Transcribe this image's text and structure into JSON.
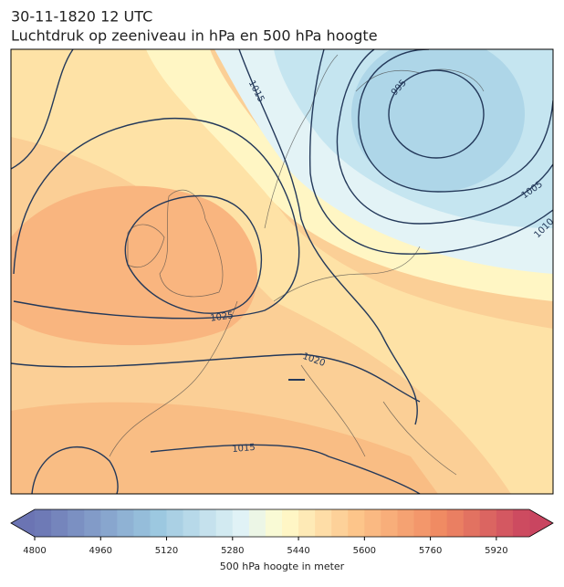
{
  "header": {
    "date": "30-11-1820 12 UTC",
    "title": "Luchtdruk op zeeniveau in hPa en 500 hPa hoogte"
  },
  "map": {
    "contour_labels": [
      1015,
      995,
      1005,
      1010,
      1025,
      1020,
      1015
    ]
  },
  "colorbar": {
    "range": [
      4800,
      6000
    ],
    "ticks": [
      4800,
      4960,
      5120,
      5280,
      5440,
      5600,
      5760,
      5920
    ],
    "label": "500 hPa hoogte in meter"
  }
}
